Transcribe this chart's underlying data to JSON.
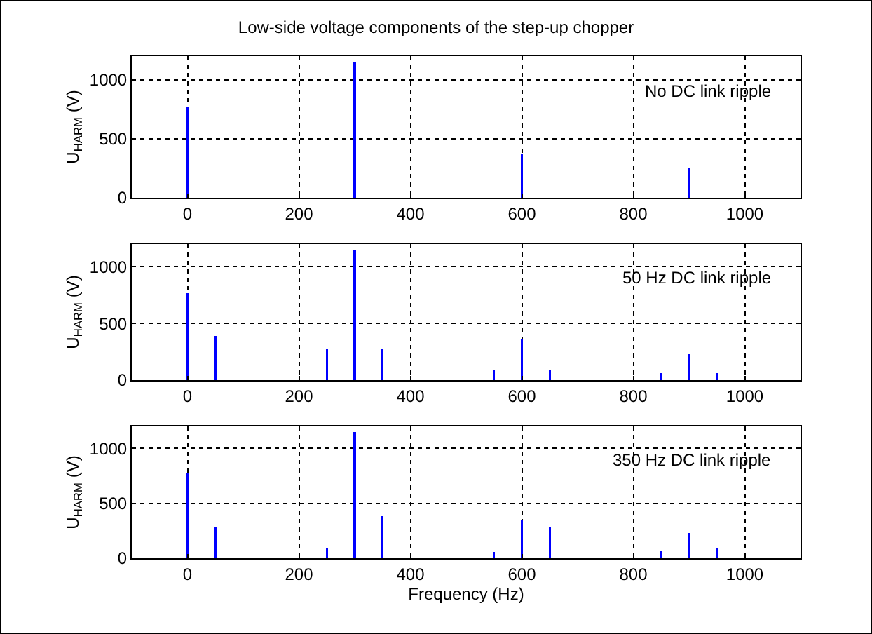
{
  "chart_data": [
    {
      "type": "bar",
      "title": "Low-side voltage components of the step-up chopper",
      "ylabel": "U$_{HARM}$ (V)",
      "x": [
        0,
        300,
        600,
        900
      ],
      "values": [
        770,
        1150,
        370,
        250
      ],
      "color": "#0000ff",
      "xlim": [
        -100,
        1100
      ],
      "ylim": [
        0,
        1200
      ],
      "xticks": [
        0,
        200,
        400,
        600,
        800,
        1000
      ],
      "yticks": [
        0,
        500,
        1000
      ],
      "grid": true,
      "annotations": [
        "No DC link ripple"
      ]
    },
    {
      "type": "bar",
      "ylabel": "U$_{HARM}$ (V)",
      "x": [
        0,
        50,
        250,
        300,
        350,
        550,
        600,
        650,
        850,
        900,
        950
      ],
      "values": [
        770,
        390,
        280,
        1150,
        280,
        90,
        360,
        90,
        60,
        230,
        60
      ],
      "color": "#0000ff",
      "xlim": [
        -100,
        1100
      ],
      "ylim": [
        0,
        1200
      ],
      "xticks": [
        0,
        200,
        400,
        600,
        800,
        1000
      ],
      "yticks": [
        0,
        500,
        1000
      ],
      "grid": true,
      "annotations": [
        "50 Hz DC link ripple"
      ]
    },
    {
      "type": "bar",
      "xlabel": "Frequency (Hz)",
      "ylabel": "U$_{HARM}$ (V)",
      "x": [
        0,
        50,
        250,
        300,
        350,
        550,
        600,
        650,
        850,
        900,
        950
      ],
      "values": [
        770,
        290,
        90,
        1150,
        380,
        60,
        350,
        290,
        70,
        230,
        90
      ],
      "color": "#0000ff",
      "xlim": [
        -100,
        1100
      ],
      "ylim": [
        0,
        1200
      ],
      "xticks": [
        0,
        200,
        400,
        600,
        800,
        1000
      ],
      "yticks": [
        0,
        500,
        1000
      ],
      "grid": true,
      "annotations": [
        "350 Hz DC link ripple"
      ]
    }
  ]
}
